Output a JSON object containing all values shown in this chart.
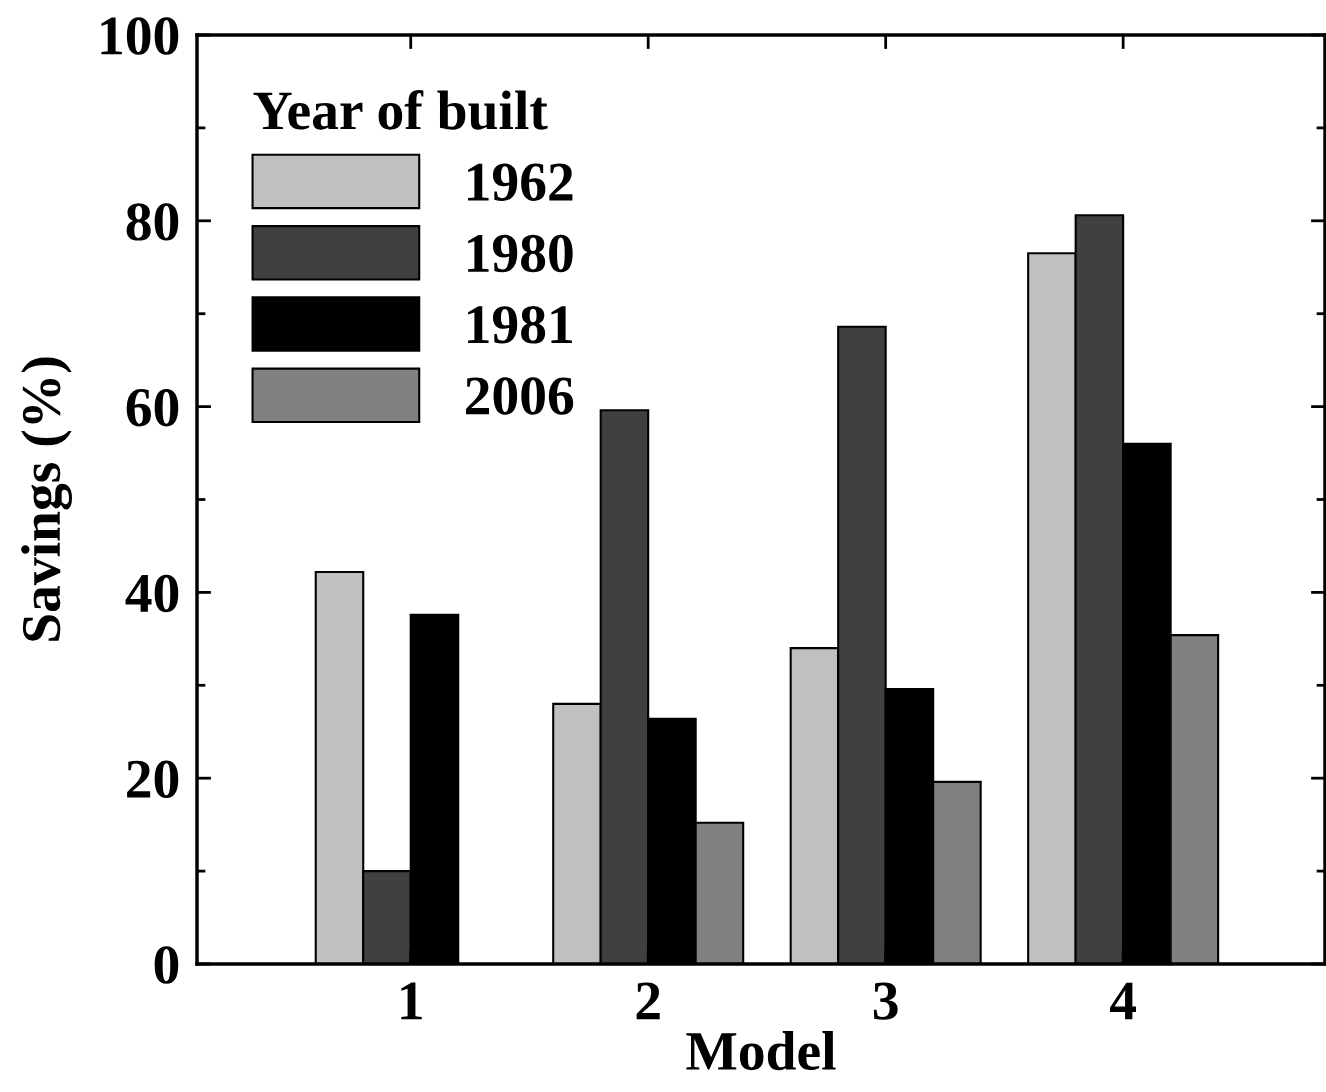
{
  "chart_data": {
    "type": "bar",
    "xlabel": "Model",
    "ylabel": "Savings (%)",
    "legend_title": "Year of built",
    "categories": [
      "1",
      "2",
      "3",
      "4"
    ],
    "series": [
      {
        "name": "1962",
        "color": "#c0c0c0",
        "values": [
          42.2,
          28.0,
          34.0,
          76.5
        ]
      },
      {
        "name": "1980",
        "color": "#404040",
        "values": [
          10.0,
          59.6,
          68.6,
          80.6
        ]
      },
      {
        "name": "1981",
        "color": "#000000",
        "values": [
          37.6,
          26.4,
          29.6,
          56.0
        ]
      },
      {
        "name": "2006",
        "color": "#808080",
        "values": [
          null,
          15.2,
          19.6,
          35.4
        ]
      }
    ],
    "ylim": [
      0,
      100
    ],
    "yticks": [
      0,
      20,
      40,
      60,
      80,
      100
    ],
    "grid": false,
    "legend": "top left"
  }
}
